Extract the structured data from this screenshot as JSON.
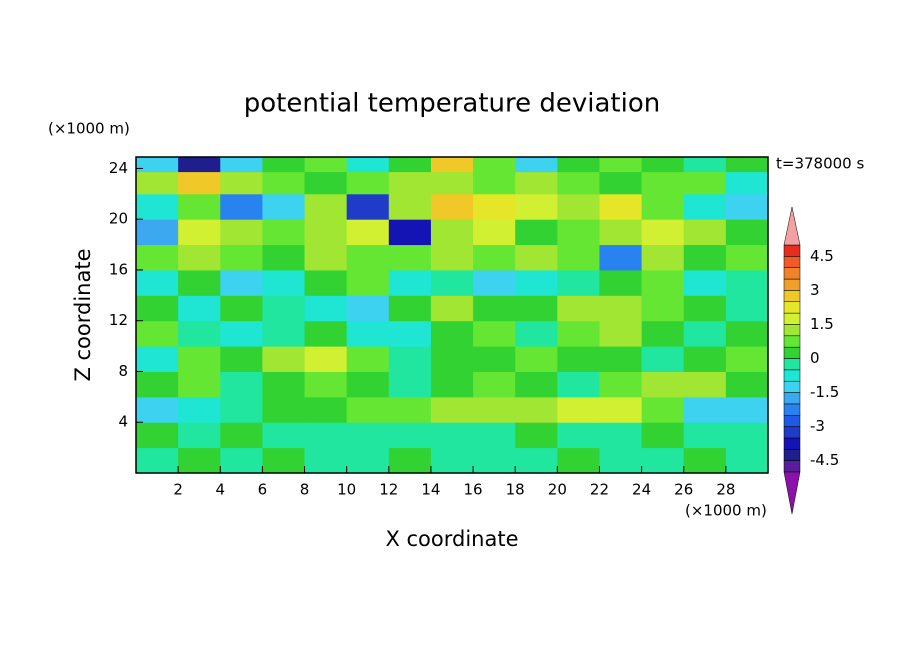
{
  "chart_data": {
    "type": "contour",
    "title": "potential temperature deviation",
    "x_label": "X coordinate",
    "y_label": "Z coordinate",
    "x_unit": "(×1000 m)",
    "y_unit": "(×1000 m)",
    "time_label": "t=378000 s",
    "xlim": [
      0,
      30
    ],
    "ylim": [
      0,
      24.9
    ],
    "xticks": [
      2,
      4,
      6,
      8,
      10,
      12,
      14,
      16,
      18,
      20,
      22,
      24,
      26,
      28
    ],
    "yticks": [
      4,
      8,
      12,
      16,
      20,
      24
    ],
    "x": [
      1,
      3,
      5,
      7,
      9,
      11,
      13,
      15,
      17,
      19,
      21,
      23,
      25,
      27,
      29
    ],
    "y": [
      1,
      3,
      5,
      7,
      9,
      11,
      13,
      15,
      17,
      19,
      21,
      23,
      24.5
    ],
    "z": [
      [
        -0.2,
        0.3,
        -0.2,
        0.3,
        -0.2,
        -0.3,
        0.2,
        -0.2,
        -0.3,
        -0.2,
        0.2,
        -0.3,
        -0.2,
        0.3,
        -0.2
      ],
      [
        0.2,
        -0.3,
        0.3,
        -0.2,
        -0.3,
        -0.2,
        -0.3,
        -0.2,
        -0.3,
        0.2,
        -0.3,
        -0.2,
        0.2,
        -0.3,
        -0.2
      ],
      [
        -1.2,
        -0.8,
        -0.3,
        0.3,
        0.3,
        0.5,
        0.8,
        1.2,
        1.2,
        1.3,
        1.5,
        1.8,
        0.8,
        -1.2,
        -1.2
      ],
      [
        0.3,
        0.5,
        -0.3,
        0.3,
        0.6,
        0.3,
        -0.3,
        0.3,
        0.5,
        0.3,
        -0.3,
        0.5,
        1.2,
        1.3,
        0.3
      ],
      [
        -0.8,
        0.5,
        0.3,
        1.3,
        1.8,
        0.5,
        -0.3,
        0.3,
        0.3,
        0.6,
        0.3,
        0.3,
        -0.3,
        0.3,
        0.8
      ],
      [
        0.5,
        -0.3,
        -0.7,
        -0.3,
        0.3,
        -0.8,
        -0.7,
        0.3,
        0.5,
        -0.3,
        0.6,
        1.2,
        0.3,
        -0.3,
        0.3
      ],
      [
        0.3,
        -0.7,
        0.3,
        -0.3,
        -0.8,
        -1.2,
        0.3,
        1.2,
        0.3,
        0.3,
        1.3,
        1.2,
        0.5,
        0.3,
        -0.3
      ],
      [
        -0.8,
        0.3,
        -1.2,
        -0.8,
        0.3,
        0.8,
        -0.8,
        -0.3,
        -1.2,
        -0.8,
        -0.3,
        0.3,
        0.5,
        -0.8,
        -0.3
      ],
      [
        0.5,
        1.2,
        0.8,
        0.3,
        1.2,
        0.6,
        0.8,
        1.2,
        0.5,
        1.3,
        0.8,
        -2.5,
        1.3,
        0.3,
        0.5
      ],
      [
        -1.8,
        1.6,
        1.2,
        0.8,
        1.3,
        1.7,
        -3.8,
        1.2,
        1.5,
        0.3,
        0.8,
        1.2,
        1.8,
        1.3,
        0.3
      ],
      [
        -0.8,
        0.5,
        -2.3,
        -1.2,
        1.2,
        -3.2,
        1.3,
        2.6,
        2.2,
        1.5,
        1.3,
        2.2,
        0.8,
        -0.8,
        -1.2
      ],
      [
        1.3,
        2.6,
        1.2,
        0.5,
        0.3,
        0.8,
        1.3,
        1.2,
        0.5,
        1.3,
        0.8,
        0.3,
        0.5,
        0.8,
        -0.8
      ],
      [
        -1.2,
        -4.2,
        -1.3,
        0.3,
        0.5,
        -0.8,
        0.3,
        2.6,
        0.5,
        -1.2,
        0.3,
        0.8,
        0.3,
        -0.3,
        0.3
      ]
    ],
    "levels": [
      -5,
      -4.5,
      -4,
      -3.5,
      -3,
      -2.5,
      -2,
      -1.5,
      -1,
      -0.5,
      0,
      0.5,
      1,
      1.5,
      2,
      2.5,
      3,
      3.5,
      4,
      4.5,
      5
    ],
    "colors": [
      "#8c10aa",
      "#5a1e9c",
      "#1e1e8c",
      "#1414b4",
      "#1e3cc8",
      "#1e5ae6",
      "#2882f0",
      "#3ca8f0",
      "#3cd2f0",
      "#1ee6d2",
      "#20e6a0",
      "#32d232",
      "#64e632",
      "#a0e632",
      "#d2f032",
      "#e6e628",
      "#f0c828",
      "#f0a028",
      "#f08228",
      "#f05a28",
      "#e62d1e",
      "#f4a0a0"
    ],
    "colorbar_labels": [
      -4.5,
      -3,
      -1.5,
      0,
      1.5,
      3,
      4.5
    ]
  }
}
